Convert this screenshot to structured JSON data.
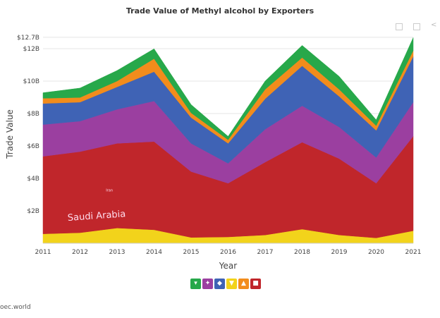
{
  "chart_data": {
    "type": "area",
    "stacked": true,
    "title": "Trade Value of Methyl alcohol by Exporters",
    "xlabel": "Year",
    "ylabel": "Trade Value",
    "x": [
      2011,
      2012,
      2013,
      2014,
      2015,
      2016,
      2017,
      2018,
      2019,
      2020,
      2021
    ],
    "ylim": [
      0,
      12.7
    ],
    "yticks": [
      {
        "v": 2,
        "label": "$2B"
      },
      {
        "v": 4,
        "label": "$4B"
      },
      {
        "v": 6,
        "label": "$6B"
      },
      {
        "v": 8,
        "label": "$8B"
      },
      {
        "v": 10,
        "label": "$10B"
      },
      {
        "v": 12,
        "label": "$12B"
      },
      {
        "v": 12.7,
        "label": "$12.7B"
      }
    ],
    "grid": true,
    "unit": "USD billions",
    "series": [
      {
        "color": "#f2d31b",
        "values": [
          0.58,
          0.65,
          0.94,
          0.83,
          0.36,
          0.39,
          0.51,
          0.87,
          0.51,
          0.33,
          0.77
        ]
      },
      {
        "color": "#c0262b",
        "values": [
          4.78,
          5.0,
          5.22,
          5.44,
          4.06,
          3.31,
          4.49,
          5.36,
          4.71,
          3.37,
          5.83
        ]
      },
      {
        "color": "#9b3fa0",
        "values": [
          1.96,
          1.88,
          2.1,
          2.5,
          1.74,
          1.23,
          2.03,
          2.25,
          1.95,
          1.59,
          2.1
        ]
      },
      {
        "color": "#3f63b5",
        "values": [
          1.3,
          1.17,
          1.38,
          1.81,
          1.59,
          1.23,
          1.88,
          2.46,
          1.89,
          1.67,
          2.82
        ]
      },
      {
        "color": "#f28c1c",
        "values": [
          0.32,
          0.29,
          0.36,
          0.8,
          0.29,
          0.22,
          0.58,
          0.51,
          0.43,
          0.29,
          0.36
        ]
      },
      {
        "color": "#27a84a",
        "values": [
          0.34,
          0.58,
          0.65,
          0.61,
          0.51,
          0.21,
          0.51,
          0.75,
          0.8,
          0.36,
          0.8
        ]
      }
    ],
    "annotations": [
      {
        "text": "Saudi Arabia",
        "x": 2013,
        "y": 1.6
      },
      {
        "text": "Iran",
        "x": 2012.7,
        "y": 3.2
      }
    ],
    "legend_position": "bottom"
  },
  "legend": [
    {
      "icon": "south-america-icon",
      "color": "#27a84a"
    },
    {
      "icon": "europe-icon",
      "color": "#9b3fa0"
    },
    {
      "icon": "north-america-icon",
      "color": "#3f63b5"
    },
    {
      "icon": "africa-icon",
      "color": "#f2d31b"
    },
    {
      "icon": "oceania-icon",
      "color": "#f28c1c"
    },
    {
      "icon": "asia-icon",
      "color": "#c0262b"
    }
  ],
  "footer": "oec.world"
}
